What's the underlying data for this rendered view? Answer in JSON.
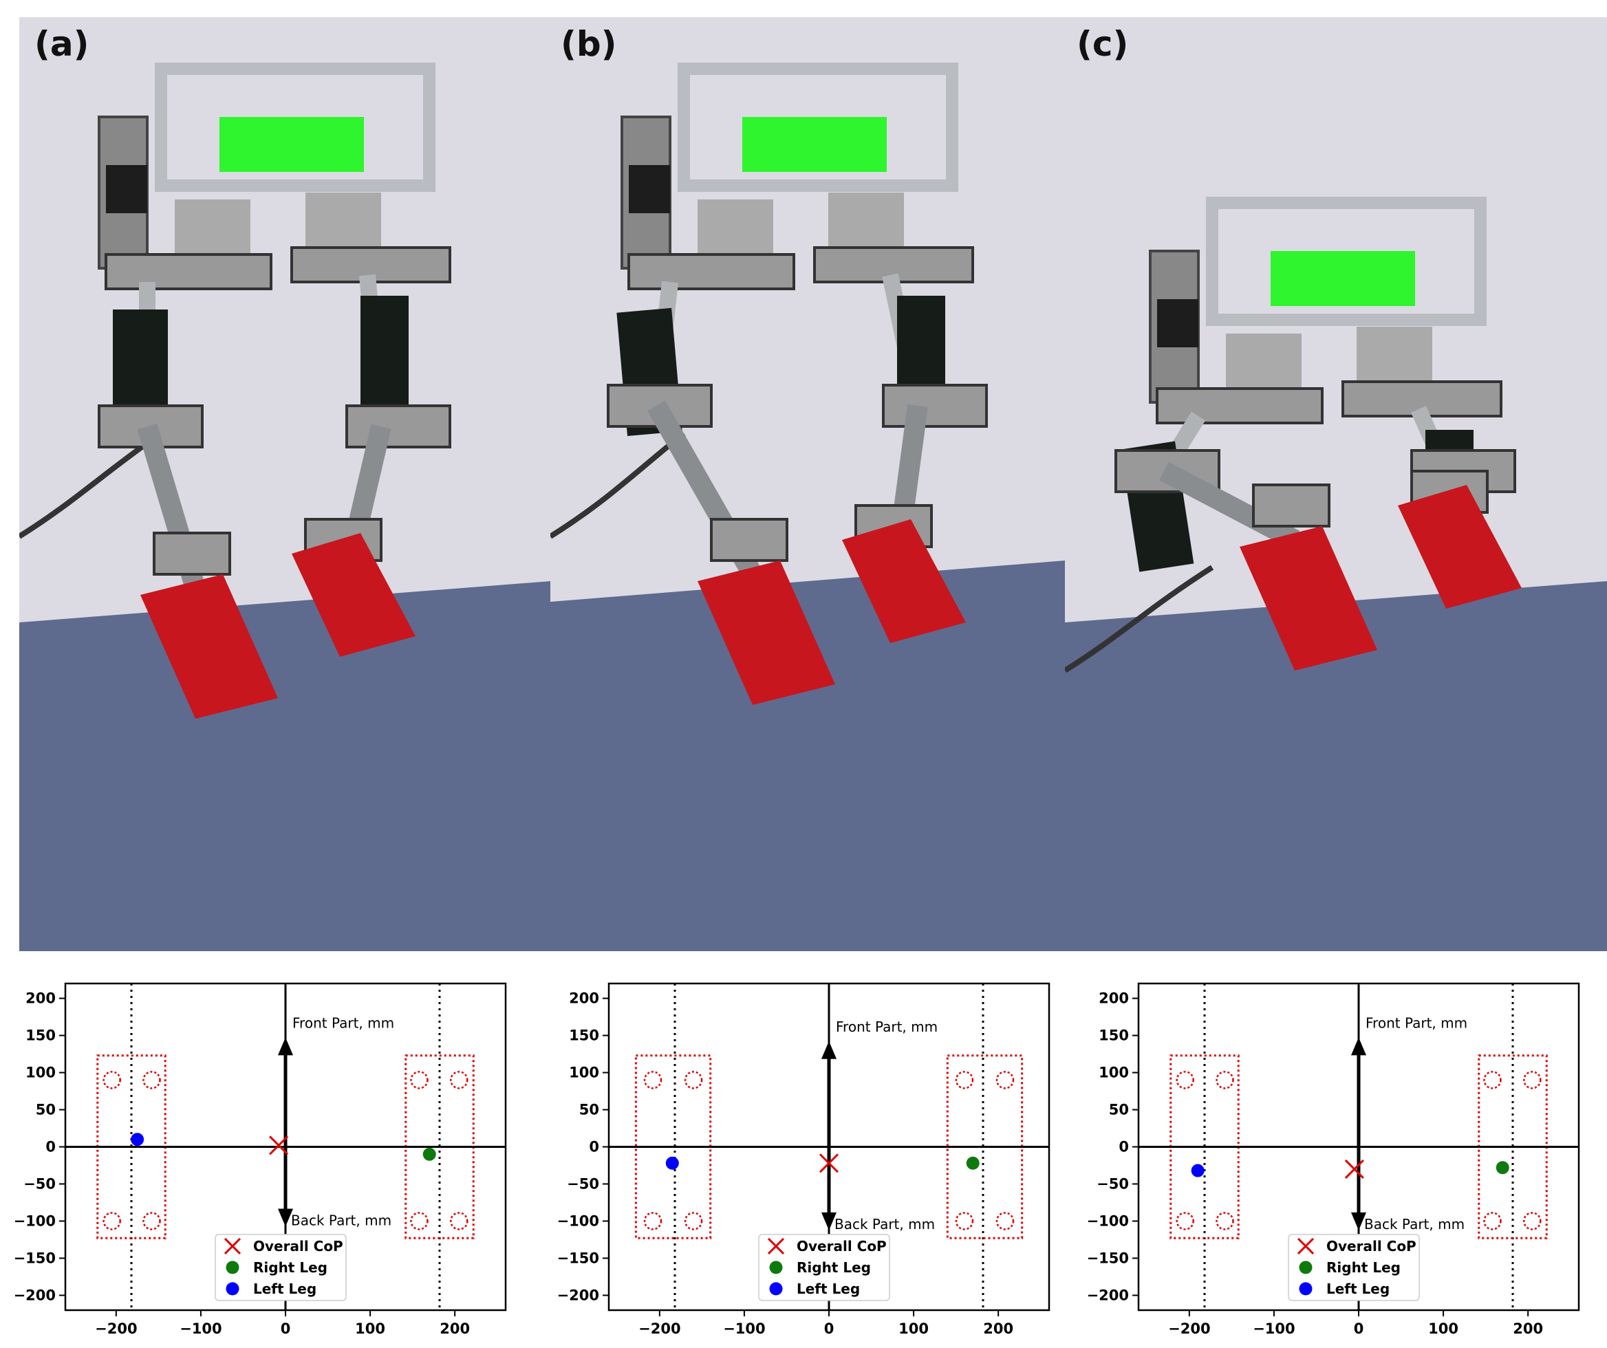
{
  "panels": [
    {
      "label": "(a)"
    },
    {
      "label": "(b)"
    },
    {
      "label": "(c)"
    }
  ],
  "colors": {
    "wall": "#dcdbe3",
    "floor": "#5f6a8f",
    "frame": "#b9bcc0",
    "battery": "#2ef52e",
    "foot": "#c8161e",
    "motor": "#1d1d1d",
    "board": "#161d18",
    "cop": "#e00000",
    "right_leg": "#0e7a0e",
    "left_leg": "#0000ff",
    "foot_outline": "#e00000"
  },
  "chart_data": [
    {
      "type": "scatter",
      "panel": "(a)",
      "xlim": [
        -260,
        260
      ],
      "ylim": [
        -220,
        220
      ],
      "xticks": [
        -200,
        -100,
        0,
        100,
        200
      ],
      "xtick_labels": [
        "−200",
        "−100",
        "0",
        "100",
        "200"
      ],
      "yticks": [
        200,
        150,
        100,
        50,
        0,
        -50,
        -100,
        -150,
        -200
      ],
      "ytick_labels": [
        "200",
        "150",
        "100",
        "50",
        "0",
        "−50",
        "−100",
        "−150",
        "−200"
      ],
      "front_arrow_label": "Front Part, mm",
      "back_arrow_label": "Back Part, mm",
      "front_arrow_tip": 140,
      "back_arrow_tip": -100,
      "dotted_x": [
        -182,
        182
      ],
      "foot_rects": [
        {
          "x0": -222,
          "x1": -142,
          "y0": -123,
          "y1": 123
        },
        {
          "x0": 142,
          "x1": 222,
          "y0": -123,
          "y1": 123
        }
      ],
      "sensor_circles": [
        [
          -205,
          90
        ],
        [
          -158,
          90
        ],
        [
          -205,
          -100
        ],
        [
          -158,
          -100
        ],
        [
          158,
          90
        ],
        [
          205,
          90
        ],
        [
          158,
          -100
        ],
        [
          205,
          -100
        ]
      ],
      "series": [
        {
          "name": "Overall CoP",
          "marker": "x",
          "x": [
            -8
          ],
          "y": [
            2
          ]
        },
        {
          "name": "Right Leg",
          "marker": "o",
          "x": [
            170
          ],
          "y": [
            -10
          ]
        },
        {
          "name": "Left Leg",
          "marker": "o",
          "x": [
            -175
          ],
          "y": [
            10
          ]
        }
      ],
      "legend": "lower center"
    },
    {
      "type": "scatter",
      "panel": "(b)",
      "xlim": [
        -260,
        260
      ],
      "ylim": [
        -220,
        220
      ],
      "xticks": [
        -200,
        -100,
        0,
        100,
        200
      ],
      "xtick_labels": [
        "−200",
        "−100",
        "0",
        "100",
        "200"
      ],
      "yticks": [
        200,
        150,
        100,
        50,
        0,
        -50,
        -100,
        -150,
        -200
      ],
      "ytick_labels": [
        "200",
        "150",
        "100",
        "50",
        "0",
        "−50",
        "−100",
        "−150",
        "−200"
      ],
      "front_arrow_label": "Front Part, mm",
      "back_arrow_label": "Back Part, mm",
      "front_arrow_tip": 135,
      "back_arrow_tip": -105,
      "dotted_x": [
        -182,
        182
      ],
      "foot_rects": [
        {
          "x0": -228,
          "x1": -140,
          "y0": -123,
          "y1": 123
        },
        {
          "x0": 140,
          "x1": 228,
          "y0": -123,
          "y1": 123
        }
      ],
      "sensor_circles": [
        [
          -208,
          90
        ],
        [
          -160,
          90
        ],
        [
          -208,
          -100
        ],
        [
          -160,
          -100
        ],
        [
          160,
          90
        ],
        [
          208,
          90
        ],
        [
          160,
          -100
        ],
        [
          208,
          -100
        ]
      ],
      "series": [
        {
          "name": "Overall CoP",
          "marker": "x",
          "x": [
            0
          ],
          "y": [
            -22
          ]
        },
        {
          "name": "Right Leg",
          "marker": "o",
          "x": [
            170
          ],
          "y": [
            -22
          ]
        },
        {
          "name": "Left Leg",
          "marker": "o",
          "x": [
            -185
          ],
          "y": [
            -22
          ]
        }
      ],
      "legend": "lower center"
    },
    {
      "type": "scatter",
      "panel": "(c)",
      "xlim": [
        -260,
        260
      ],
      "ylim": [
        -220,
        220
      ],
      "xticks": [
        -200,
        -100,
        0,
        100,
        200
      ],
      "xtick_labels": [
        "−200",
        "−100",
        "0",
        "100",
        "200"
      ],
      "yticks": [
        200,
        150,
        100,
        50,
        0,
        -50,
        -100,
        -150,
        -200
      ],
      "ytick_labels": [
        "200",
        "150",
        "100",
        "50",
        "0",
        "−50",
        "−100",
        "−150",
        "−200"
      ],
      "front_arrow_label": "Front Part, mm",
      "back_arrow_label": "Back Part, mm",
      "front_arrow_tip": 140,
      "back_arrow_tip": -105,
      "dotted_x": [
        -182,
        182
      ],
      "foot_rects": [
        {
          "x0": -222,
          "x1": -142,
          "y0": -123,
          "y1": 123
        },
        {
          "x0": 142,
          "x1": 222,
          "y0": -123,
          "y1": 123
        }
      ],
      "sensor_circles": [
        [
          -205,
          90
        ],
        [
          -158,
          90
        ],
        [
          -205,
          -100
        ],
        [
          -158,
          -100
        ],
        [
          158,
          90
        ],
        [
          205,
          90
        ],
        [
          158,
          -100
        ],
        [
          205,
          -100
        ]
      ],
      "series": [
        {
          "name": "Overall CoP",
          "marker": "x",
          "x": [
            -5
          ],
          "y": [
            -30
          ]
        },
        {
          "name": "Right Leg",
          "marker": "o",
          "x": [
            170
          ],
          "y": [
            -28
          ]
        },
        {
          "name": "Left Leg",
          "marker": "o",
          "x": [
            -190
          ],
          "y": [
            -32
          ]
        }
      ],
      "legend": "lower center"
    }
  ]
}
